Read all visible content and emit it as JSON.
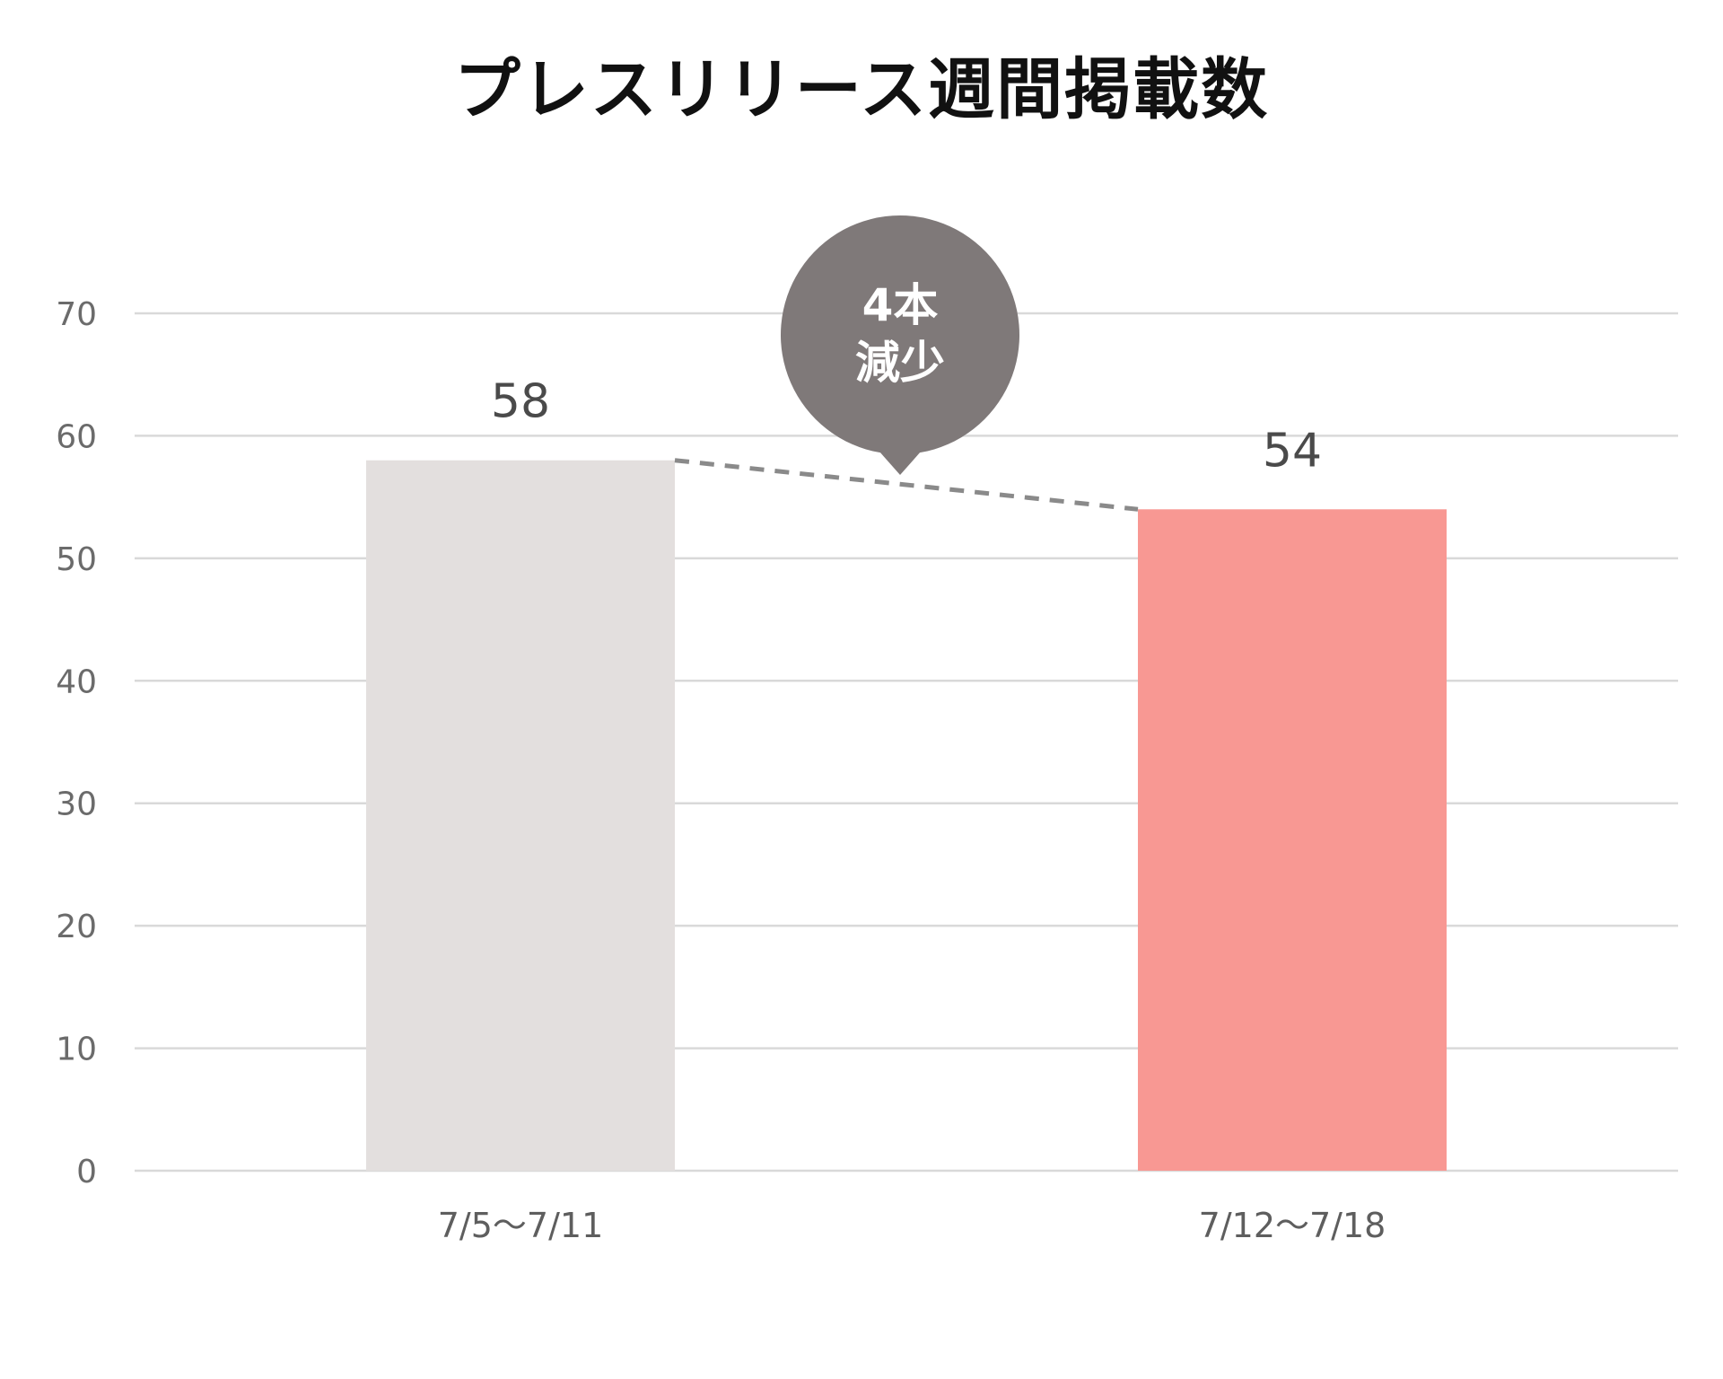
{
  "chart_data": {
    "type": "bar",
    "title": "プレスリリース週間掲載数",
    "categories": [
      "7/5〜7/11",
      "7/12〜7/18"
    ],
    "values": [
      58,
      54
    ],
    "data_labels": [
      "58",
      "54"
    ],
    "bar_colors": [
      "#e3dfde",
      "#f89893"
    ],
    "ylim": [
      0,
      70
    ],
    "yticks": [
      "0",
      "10",
      "20",
      "30",
      "40",
      "50",
      "60",
      "70"
    ],
    "grid": true,
    "connector": "dashed",
    "connector_color": "#8a8a8a",
    "callout": {
      "line1": "4本",
      "line2": "減少",
      "color": "#7f7979"
    }
  }
}
